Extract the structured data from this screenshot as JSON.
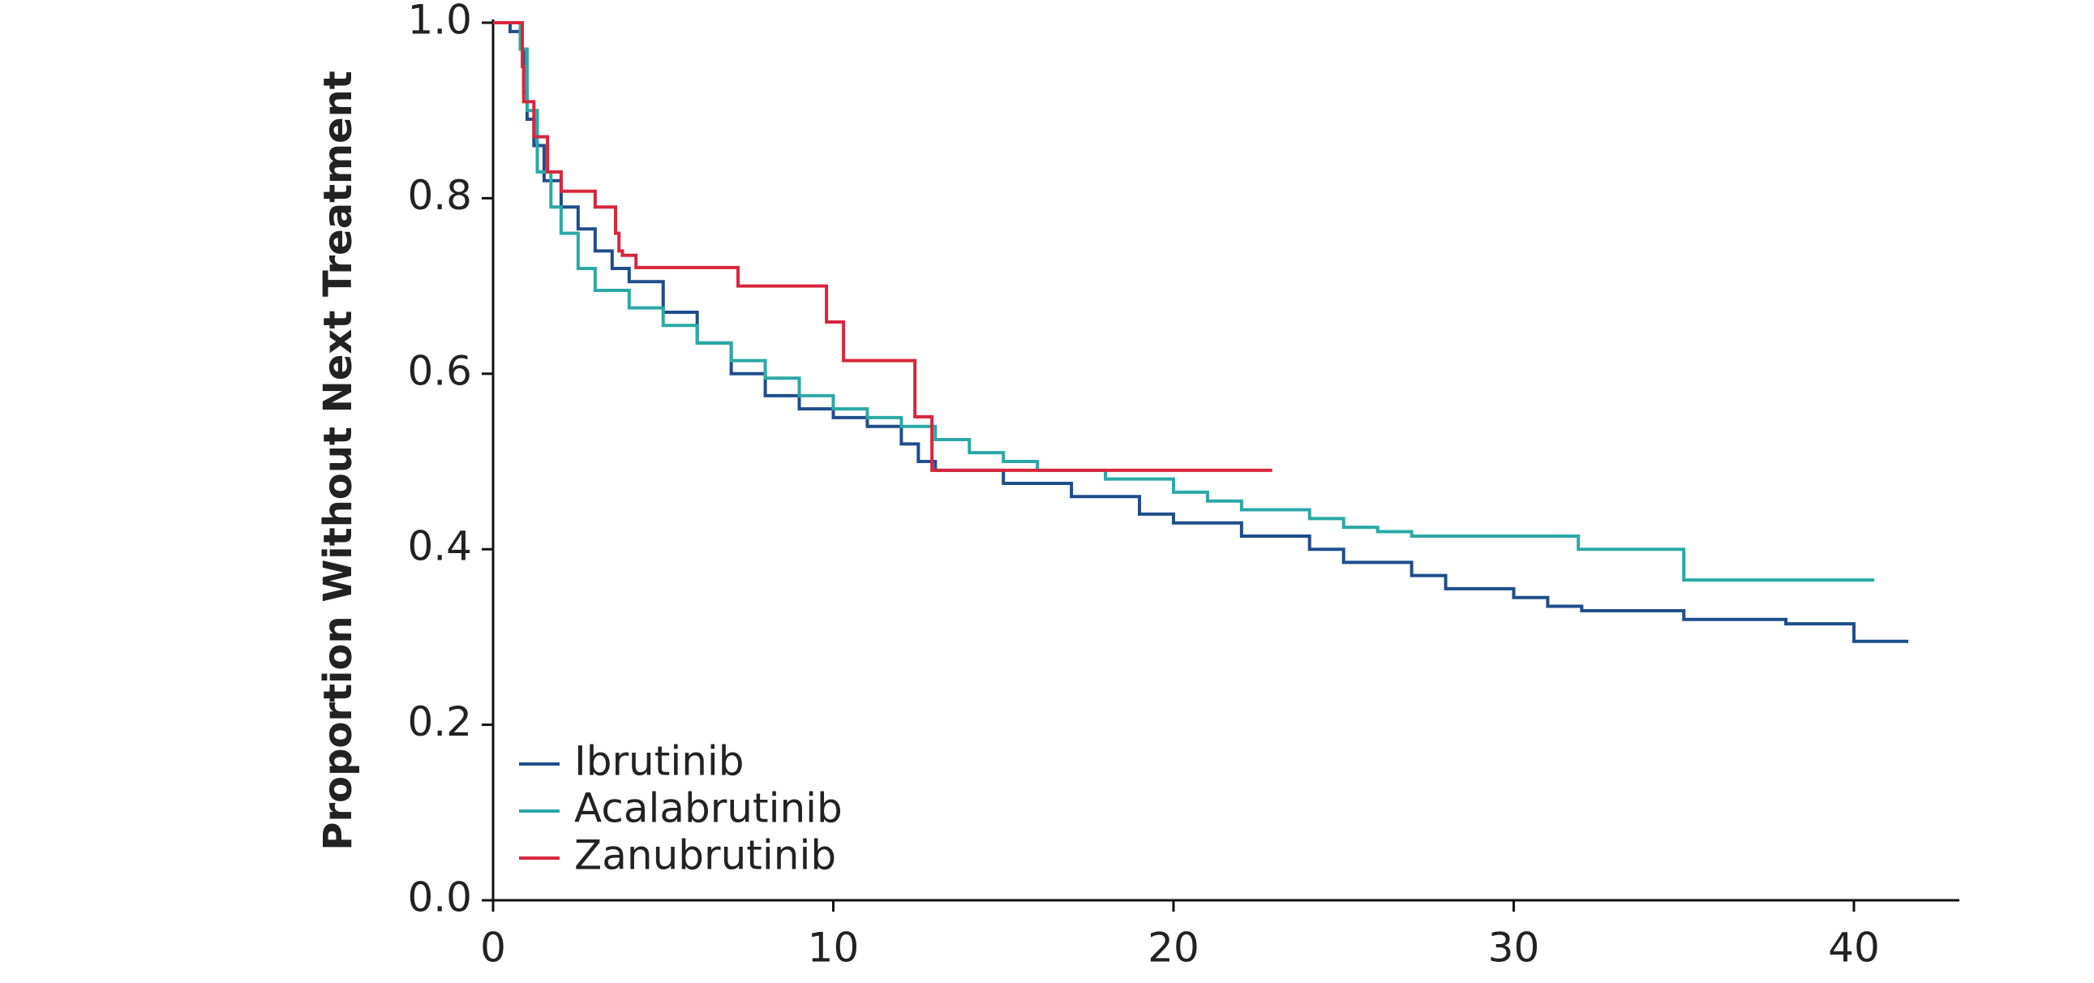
{
  "chart_data": {
    "type": "line",
    "step": true,
    "y_label": "Proportion Without Next Treatment",
    "xlim": [
      0,
      43.1
    ],
    "ylim": [
      0,
      1
    ],
    "xticks": [
      0,
      10,
      20,
      30,
      40
    ],
    "yticks": [
      {
        "value": 0,
        "label": "0.0"
      },
      0.2,
      0.4,
      0.6,
      0.8,
      {
        "value": 1,
        "label": "1.0"
      }
    ],
    "legend": "lower left",
    "series": [
      {
        "name": "Ibrutinib",
        "color": "#1f4e8c",
        "x": [
          0,
          0.5,
          0.8,
          0.9,
          1.0,
          1.2,
          1.5,
          2,
          2.5,
          3,
          3.5,
          4,
          5,
          6,
          7,
          8,
          9,
          10,
          11,
          12,
          12.5,
          13,
          15,
          17,
          19,
          20,
          22,
          24,
          25,
          27,
          28,
          30,
          31,
          32,
          35,
          38,
          40,
          41.6
        ],
        "values": [
          1.0,
          0.99,
          0.97,
          0.92,
          0.89,
          0.86,
          0.82,
          0.79,
          0.765,
          0.74,
          0.72,
          0.705,
          0.67,
          0.635,
          0.6,
          0.575,
          0.56,
          0.55,
          0.54,
          0.52,
          0.5,
          0.49,
          0.475,
          0.46,
          0.44,
          0.43,
          0.415,
          0.4,
          0.385,
          0.37,
          0.355,
          0.345,
          0.335,
          0.33,
          0.32,
          0.315,
          0.295,
          0.295
        ]
      },
      {
        "name": "Acalabrutinib",
        "color": "#2aa9a6",
        "x": [
          0,
          0.8,
          1.0,
          1.3,
          1.7,
          2,
          2.5,
          3,
          4,
          5,
          6,
          7,
          8,
          9,
          10,
          11,
          12,
          13,
          14,
          15,
          16,
          18,
          20,
          21,
          22,
          24,
          25,
          26,
          27,
          31.9,
          35,
          40.6
        ],
        "values": [
          1.0,
          0.97,
          0.9,
          0.83,
          0.79,
          0.76,
          0.72,
          0.695,
          0.675,
          0.655,
          0.635,
          0.615,
          0.595,
          0.575,
          0.56,
          0.55,
          0.54,
          0.525,
          0.51,
          0.5,
          0.49,
          0.48,
          0.465,
          0.455,
          0.445,
          0.435,
          0.425,
          0.42,
          0.415,
          0.4,
          0.365,
          0.365
        ]
      },
      {
        "name": "Zanubrutinib",
        "color": "#d7263d",
        "x": [
          0,
          0.86,
          0.9,
          1.2,
          1.6,
          2.0,
          3.0,
          3.6,
          3.7,
          3.8,
          4.2,
          7.2,
          9.8,
          10.3,
          12.4,
          12.9,
          22.9
        ],
        "values": [
          1.0,
          0.95,
          0.91,
          0.87,
          0.83,
          0.808,
          0.79,
          0.76,
          0.74,
          0.735,
          0.721,
          0.7,
          0.659,
          0.615,
          0.551,
          0.49,
          0.49
        ]
      }
    ]
  }
}
